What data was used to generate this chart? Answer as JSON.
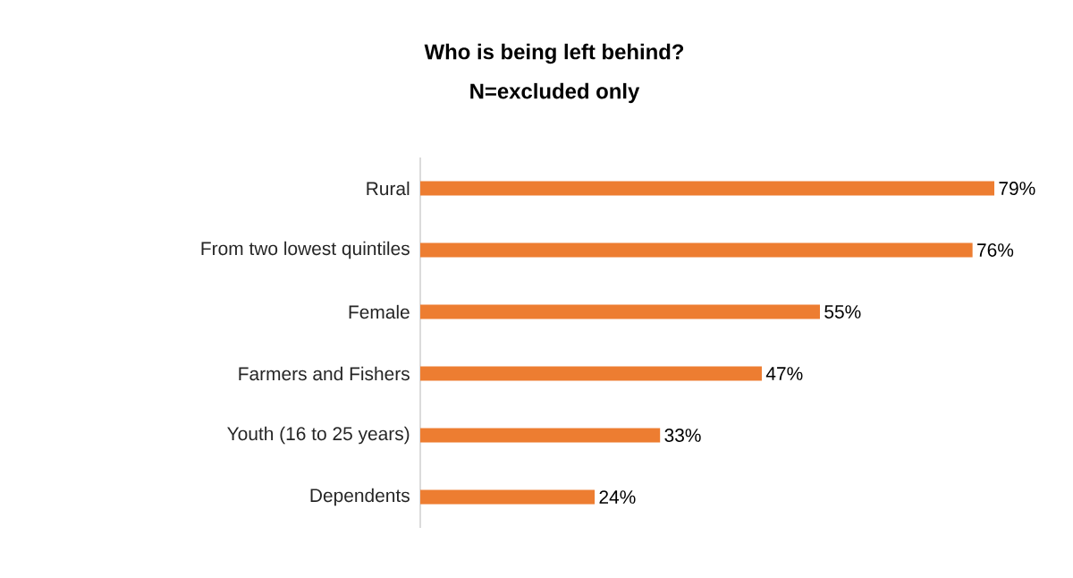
{
  "chart_data": {
    "type": "bar",
    "orientation": "horizontal",
    "title": "Who is being left behind?",
    "subtitle": "N=excluded only",
    "categories": [
      "Rural",
      "From two lowest quintiles",
      "Female",
      "Farmers and Fishers",
      "Youth (16 to 25 years)",
      "Dependents"
    ],
    "values": [
      79,
      76,
      55,
      47,
      33,
      24
    ],
    "value_labels": [
      "79%",
      "76%",
      "55%",
      "47%",
      "33%",
      "24%"
    ],
    "color": "#ed7d31"
  }
}
